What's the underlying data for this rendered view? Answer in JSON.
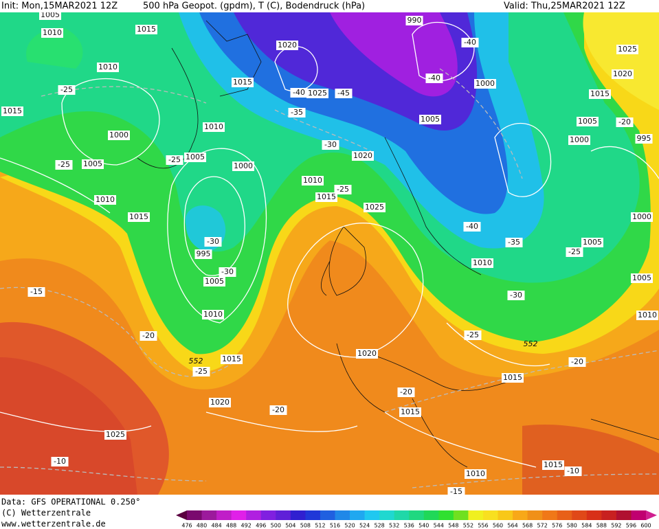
{
  "header": {
    "init": "Init: Mon,15MAR2021 12Z",
    "product": "500 hPa Geopot. (gpdm), T (C), Bodendruck (hPa)",
    "valid": "Valid: Thu,25MAR2021 12Z"
  },
  "footer": {
    "data": "Data: GFS OPERATIONAL 0.250°",
    "copyright": "(C) Wetterzentrale",
    "url": "www.wetterzentrale.de"
  },
  "colorbar": {
    "ticks": [
      476,
      480,
      484,
      488,
      492,
      496,
      500,
      504,
      508,
      512,
      516,
      520,
      524,
      528,
      532,
      536,
      540,
      544,
      548,
      552,
      556,
      560,
      564,
      568,
      572,
      576,
      580,
      584,
      588,
      592,
      596,
      600
    ],
    "colors": [
      "#5a0040",
      "#7a0a6e",
      "#9c1a9c",
      "#c01ec8",
      "#e020e8",
      "#b020e0",
      "#8020e0",
      "#6020d8",
      "#3020d0",
      "#2038d8",
      "#2060e0",
      "#2088e8",
      "#20a8f0",
      "#20c8f0",
      "#20d8d0",
      "#20d8a8",
      "#20d880",
      "#20d858",
      "#30e030",
      "#70e020",
      "#f0f020",
      "#f8e020",
      "#f8c818",
      "#f8a818",
      "#f09018",
      "#f07818",
      "#e86018",
      "#e04818",
      "#d83018",
      "#c82020",
      "#b01030",
      "#c00070",
      "#d02090"
    ]
  },
  "map_labels": [
    "1005",
    "1010",
    "1015",
    "1010",
    "-25",
    "1015",
    "1000",
    "1005",
    "-25",
    "1010",
    "1015",
    "-25",
    "1005",
    "1010",
    "1015",
    "1020",
    "-40",
    "1025",
    "-45",
    "-35",
    "1000",
    "-30",
    "1020",
    "1010",
    "-25",
    "1015",
    "1025",
    "990",
    "-40",
    "-40",
    "1000",
    "1005",
    "1025",
    "1020",
    "1015",
    "1005",
    "-20",
    "1000",
    "995",
    "-30",
    "995",
    "-30",
    "1005",
    "1010",
    "-40",
    "-35",
    "1005",
    "-25",
    "1000",
    "1010",
    "1005",
    "-30",
    "1010",
    "-15",
    "-20",
    "-25",
    "552",
    "552",
    "-25",
    "1015",
    "1020",
    "-20",
    "1015",
    "-20",
    "1020",
    "-20",
    "1015",
    "1025",
    "-10",
    "1015",
    "-10",
    "1010",
    "-15"
  ]
}
